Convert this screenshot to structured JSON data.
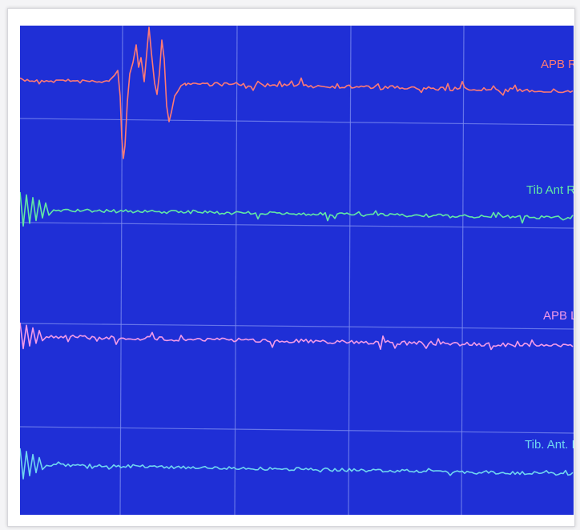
{
  "monitor": {
    "background": "#1f2fd6",
    "grid_color": "#7d8cf0",
    "grid": true,
    "traces": [
      {
        "name": "APB R",
        "color": "#ff7a74"
      },
      {
        "name": "Tib Ant R",
        "color": "#62e8a4"
      },
      {
        "name": "APB L",
        "color": "#f39be8"
      },
      {
        "name": "Tib. Ant. L",
        "color": "#6fd6f0"
      }
    ]
  }
}
